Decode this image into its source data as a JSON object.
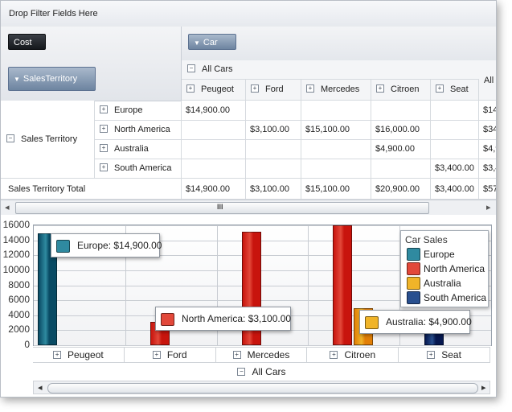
{
  "filter_bar": {
    "label": "Drop Filter Fields Here"
  },
  "chips": {
    "measure": "Cost",
    "column_field": "Car",
    "row_field": "SalesTerritory"
  },
  "column_header": {
    "root": "All Cars",
    "cars": [
      "Peugeot",
      "Ford",
      "Mercedes",
      "Citroen",
      "Seat"
    ],
    "all_partial": "All"
  },
  "row_header": {
    "group": "Sales Territory",
    "regions": [
      "Europe",
      "North America",
      "Australia",
      "South America"
    ],
    "total": "Sales Territory  Total"
  },
  "grid": {
    "rows": [
      [
        "$14,900.00",
        "",
        "",
        "",
        "",
        "$14"
      ],
      [
        "",
        "$3,100.00",
        "$15,100.00",
        "$16,000.00",
        "",
        "$34"
      ],
      [
        "",
        "",
        "",
        "$4,900.00",
        "",
        "$4,9"
      ],
      [
        "",
        "",
        "",
        "",
        "$3,400.00",
        "$3,4"
      ]
    ],
    "totals": [
      "$14,900.00",
      "$3,100.00",
      "$15,100.00",
      "$20,900.00",
      "$3,400.00",
      "$57"
    ]
  },
  "scrollbar": {
    "thumb_glyph": "III",
    "left_arrow": "◂",
    "right_arrow": "▸"
  },
  "chart_data": {
    "type": "bar",
    "title": "",
    "categories": [
      "Peugeot",
      "Ford",
      "Mercedes",
      "Citroen",
      "Seat"
    ],
    "series": [
      {
        "name": "Europe",
        "color": "#2f8aa0",
        "values": [
          14900,
          0,
          0,
          0,
          0
        ]
      },
      {
        "name": "North America",
        "color": "#e2483a",
        "values": [
          0,
          3100,
          15100,
          16000,
          0
        ]
      },
      {
        "name": "Australia",
        "color": "#f0b429",
        "values": [
          0,
          0,
          0,
          4900,
          0
        ]
      },
      {
        "name": "South America",
        "color": "#284f8f",
        "values": [
          0,
          0,
          0,
          0,
          3400
        ]
      }
    ],
    "y_ticks": [
      "16000",
      "14000",
      "12000",
      "10000",
      "8000",
      "6000",
      "4000",
      "2000",
      "0"
    ],
    "ylim": [
      0,
      16000
    ],
    "grid": true,
    "legend": {
      "title": "Car Sales",
      "position": "top-right"
    },
    "tooltips": [
      "Europe: $14,900.00",
      "North America: $3,100.00",
      "Australia: $4,900.00"
    ],
    "x_group": "All Cars"
  }
}
